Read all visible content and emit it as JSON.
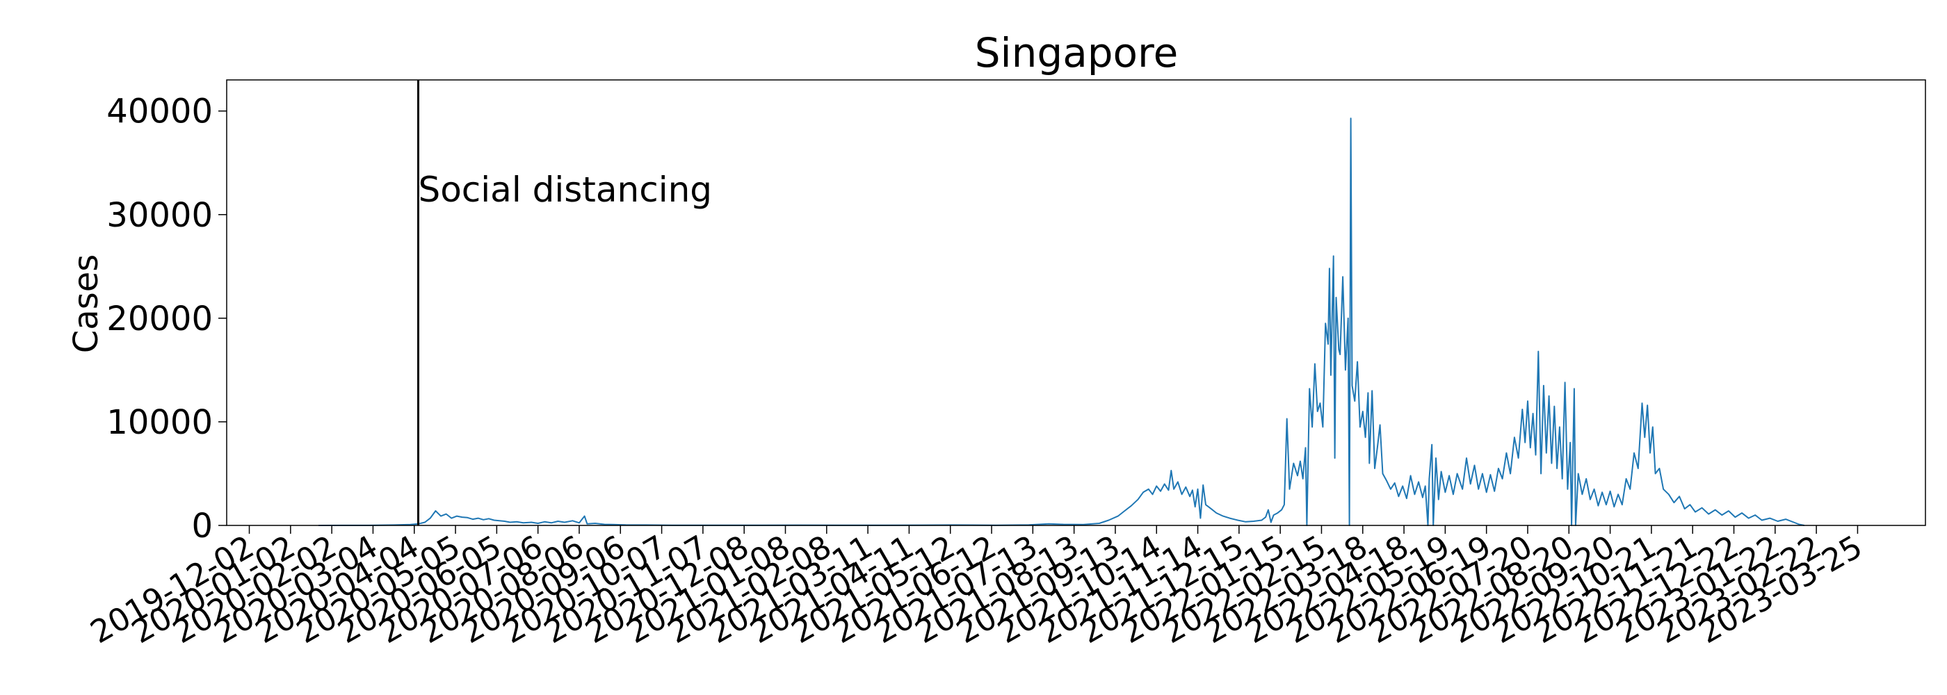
{
  "chart_data": {
    "type": "line",
    "title": "Singapore",
    "xlabel": "",
    "ylabel": "Cases",
    "ylim": [
      0,
      43000
    ],
    "xlim": [
      "2019-11-15",
      "2023-05-15"
    ],
    "y_ticks": [
      0,
      10000,
      20000,
      30000,
      40000
    ],
    "x_ticks": [
      "2019-12-02",
      "2020-01-02",
      "2020-02-02",
      "2020-03-04",
      "2020-04-04",
      "2020-05-05",
      "2020-06-05",
      "2020-07-06",
      "2020-08-06",
      "2020-09-06",
      "2020-10-07",
      "2020-11-07",
      "2020-12-08",
      "2021-01-08",
      "2021-02-08",
      "2021-03-11",
      "2021-04-11",
      "2021-05-12",
      "2021-06-12",
      "2021-07-13",
      "2021-08-13",
      "2021-09-13",
      "2021-10-14",
      "2021-11-14",
      "2021-12-15",
      "2022-01-15",
      "2022-02-15",
      "2022-03-18",
      "2022-04-18",
      "2022-05-19",
      "2022-06-19",
      "2022-07-20",
      "2022-08-20",
      "2022-09-20",
      "2022-10-21",
      "2022-11-21",
      "2022-12-22",
      "2023-01-22",
      "2023-02-22",
      "2023-03-25"
    ],
    "grid": false,
    "line_color": "#1f77b4",
    "annotation": {
      "text": "Social distancing",
      "date": "2020-04-07"
    },
    "series": [
      {
        "points": [
          [
            "2020-01-23",
            1
          ],
          [
            "2020-02-10",
            5
          ],
          [
            "2020-03-01",
            10
          ],
          [
            "2020-03-20",
            40
          ],
          [
            "2020-04-01",
            80
          ],
          [
            "2020-04-07",
            150
          ],
          [
            "2020-04-12",
            300
          ],
          [
            "2020-04-16",
            700
          ],
          [
            "2020-04-20",
            1400
          ],
          [
            "2020-04-24",
            900
          ],
          [
            "2020-04-28",
            1100
          ],
          [
            "2020-05-02",
            700
          ],
          [
            "2020-05-06",
            900
          ],
          [
            "2020-05-10",
            800
          ],
          [
            "2020-05-14",
            750
          ],
          [
            "2020-05-18",
            600
          ],
          [
            "2020-05-22",
            700
          ],
          [
            "2020-05-26",
            550
          ],
          [
            "2020-05-30",
            650
          ],
          [
            "2020-06-03",
            500
          ],
          [
            "2020-06-07",
            450
          ],
          [
            "2020-06-11",
            400
          ],
          [
            "2020-06-15",
            300
          ],
          [
            "2020-06-20",
            350
          ],
          [
            "2020-06-25",
            250
          ],
          [
            "2020-07-01",
            300
          ],
          [
            "2020-07-06",
            200
          ],
          [
            "2020-07-11",
            350
          ],
          [
            "2020-07-16",
            250
          ],
          [
            "2020-07-21",
            400
          ],
          [
            "2020-07-26",
            300
          ],
          [
            "2020-08-01",
            450
          ],
          [
            "2020-08-06",
            250
          ],
          [
            "2020-08-10",
            900
          ],
          [
            "2020-08-12",
            150
          ],
          [
            "2020-08-18",
            200
          ],
          [
            "2020-08-25",
            100
          ],
          [
            "2020-09-01",
            80
          ],
          [
            "2020-09-10",
            50
          ],
          [
            "2020-09-25",
            40
          ],
          [
            "2020-10-15",
            20
          ],
          [
            "2020-11-15",
            15
          ],
          [
            "2020-12-20",
            20
          ],
          [
            "2021-01-20",
            30
          ],
          [
            "2021-02-20",
            15
          ],
          [
            "2021-03-20",
            20
          ],
          [
            "2021-04-20",
            25
          ],
          [
            "2021-05-15",
            40
          ],
          [
            "2021-06-15",
            20
          ],
          [
            "2021-07-10",
            50
          ],
          [
            "2021-07-25",
            150
          ],
          [
            "2021-08-05",
            100
          ],
          [
            "2021-08-20",
            80
          ],
          [
            "2021-09-01",
            200
          ],
          [
            "2021-09-08",
            500
          ],
          [
            "2021-09-15",
            900
          ],
          [
            "2021-09-20",
            1400
          ],
          [
            "2021-09-25",
            1900
          ],
          [
            "2021-09-30",
            2500
          ],
          [
            "2021-10-04",
            3200
          ],
          [
            "2021-10-08",
            3500
          ],
          [
            "2021-10-11",
            3000
          ],
          [
            "2021-10-14",
            3800
          ],
          [
            "2021-10-17",
            3300
          ],
          [
            "2021-10-20",
            4000
          ],
          [
            "2021-10-23",
            3400
          ],
          [
            "2021-10-25",
            5300
          ],
          [
            "2021-10-27",
            3500
          ],
          [
            "2021-10-30",
            4200
          ],
          [
            "2021-11-02",
            3000
          ],
          [
            "2021-11-05",
            3700
          ],
          [
            "2021-11-08",
            2800
          ],
          [
            "2021-11-10",
            3400
          ],
          [
            "2021-11-12",
            1800
          ],
          [
            "2021-11-14",
            3500
          ],
          [
            "2021-11-16",
            700
          ],
          [
            "2021-11-18",
            3900
          ],
          [
            "2021-11-20",
            2000
          ],
          [
            "2021-11-24",
            1600
          ],
          [
            "2021-11-28",
            1200
          ],
          [
            "2021-12-03",
            900
          ],
          [
            "2021-12-08",
            700
          ],
          [
            "2021-12-14",
            500
          ],
          [
            "2021-12-20",
            350
          ],
          [
            "2021-12-26",
            400
          ],
          [
            "2022-01-01",
            500
          ],
          [
            "2022-01-04",
            800
          ],
          [
            "2022-01-06",
            1500
          ],
          [
            "2022-01-08",
            300
          ],
          [
            "2022-01-10",
            1000
          ],
          [
            "2022-01-13",
            1200
          ],
          [
            "2022-01-16",
            1500
          ],
          [
            "2022-01-18",
            2000
          ],
          [
            "2022-01-20",
            10300
          ],
          [
            "2022-01-22",
            3500
          ],
          [
            "2022-01-25",
            6000
          ],
          [
            "2022-01-28",
            4800
          ],
          [
            "2022-01-30",
            6200
          ],
          [
            "2022-02-01",
            4500
          ],
          [
            "2022-02-03",
            7500
          ],
          [
            "2022-02-04",
            0
          ],
          [
            "2022-02-06",
            13200
          ],
          [
            "2022-02-08",
            9500
          ],
          [
            "2022-02-10",
            15600
          ],
          [
            "2022-02-12",
            11000
          ],
          [
            "2022-02-14",
            11800
          ],
          [
            "2022-02-16",
            9500
          ],
          [
            "2022-02-18",
            19500
          ],
          [
            "2022-02-20",
            17500
          ],
          [
            "2022-02-21",
            24800
          ],
          [
            "2022-02-22",
            14500
          ],
          [
            "2022-02-24",
            26000
          ],
          [
            "2022-02-25",
            6500
          ],
          [
            "2022-02-26",
            22000
          ],
          [
            "2022-02-28",
            17000
          ],
          [
            "2022-03-01",
            16500
          ],
          [
            "2022-03-03",
            24000
          ],
          [
            "2022-03-05",
            15000
          ],
          [
            "2022-03-07",
            20000
          ],
          [
            "2022-03-08",
            0
          ],
          [
            "2022-03-09",
            39300
          ],
          [
            "2022-03-10",
            13500
          ],
          [
            "2022-03-12",
            12000
          ],
          [
            "2022-03-14",
            15800
          ],
          [
            "2022-03-16",
            9500
          ],
          [
            "2022-03-18",
            11000
          ],
          [
            "2022-03-20",
            8500
          ],
          [
            "2022-03-22",
            12800
          ],
          [
            "2022-03-23",
            6000
          ],
          [
            "2022-03-25",
            13000
          ],
          [
            "2022-03-27",
            5500
          ],
          [
            "2022-03-29",
            7500
          ],
          [
            "2022-03-31",
            9700
          ],
          [
            "2022-04-02",
            5000
          ],
          [
            "2022-04-05",
            4300
          ],
          [
            "2022-04-08",
            3500
          ],
          [
            "2022-04-11",
            4100
          ],
          [
            "2022-04-14",
            2800
          ],
          [
            "2022-04-17",
            3800
          ],
          [
            "2022-04-20",
            2600
          ],
          [
            "2022-04-23",
            4800
          ],
          [
            "2022-04-26",
            3000
          ],
          [
            "2022-04-29",
            4200
          ],
          [
            "2022-05-02",
            2700
          ],
          [
            "2022-05-04",
            3800
          ],
          [
            "2022-05-06",
            0
          ],
          [
            "2022-05-07",
            4500
          ],
          [
            "2022-05-09",
            7800
          ],
          [
            "2022-05-10",
            0
          ],
          [
            "2022-05-12",
            6500
          ],
          [
            "2022-05-14",
            2500
          ],
          [
            "2022-05-16",
            5200
          ],
          [
            "2022-05-19",
            3200
          ],
          [
            "2022-05-22",
            4800
          ],
          [
            "2022-05-25",
            3000
          ],
          [
            "2022-05-28",
            5000
          ],
          [
            "2022-06-01",
            3500
          ],
          [
            "2022-06-04",
            6500
          ],
          [
            "2022-06-07",
            4000
          ],
          [
            "2022-06-10",
            5800
          ],
          [
            "2022-06-13",
            3500
          ],
          [
            "2022-06-16",
            5000
          ],
          [
            "2022-06-19",
            3200
          ],
          [
            "2022-06-22",
            4900
          ],
          [
            "2022-06-25",
            3300
          ],
          [
            "2022-06-28",
            5500
          ],
          [
            "2022-07-01",
            4500
          ],
          [
            "2022-07-04",
            7000
          ],
          [
            "2022-07-07",
            5000
          ],
          [
            "2022-07-10",
            8500
          ],
          [
            "2022-07-13",
            6500
          ],
          [
            "2022-07-16",
            11200
          ],
          [
            "2022-07-18",
            8000
          ],
          [
            "2022-07-20",
            12000
          ],
          [
            "2022-07-22",
            7500
          ],
          [
            "2022-07-24",
            10800
          ],
          [
            "2022-07-26",
            6800
          ],
          [
            "2022-07-28",
            16800
          ],
          [
            "2022-07-30",
            5000
          ],
          [
            "2022-08-01",
            13500
          ],
          [
            "2022-08-03",
            7000
          ],
          [
            "2022-08-05",
            12500
          ],
          [
            "2022-08-07",
            6000
          ],
          [
            "2022-08-09",
            11500
          ],
          [
            "2022-08-11",
            5500
          ],
          [
            "2022-08-13",
            9500
          ],
          [
            "2022-08-15",
            4500
          ],
          [
            "2022-08-17",
            13800
          ],
          [
            "2022-08-19",
            3500
          ],
          [
            "2022-08-21",
            8000
          ],
          [
            "2022-08-22",
            0
          ],
          [
            "2022-08-24",
            13200
          ],
          [
            "2022-08-25",
            0
          ],
          [
            "2022-08-27",
            5000
          ],
          [
            "2022-08-30",
            3000
          ],
          [
            "2022-09-02",
            4500
          ],
          [
            "2022-09-05",
            2500
          ],
          [
            "2022-09-08",
            3500
          ],
          [
            "2022-09-11",
            1900
          ],
          [
            "2022-09-14",
            3200
          ],
          [
            "2022-09-17",
            2000
          ],
          [
            "2022-09-20",
            3300
          ],
          [
            "2022-09-23",
            1800
          ],
          [
            "2022-09-26",
            3000
          ],
          [
            "2022-09-29",
            2000
          ],
          [
            "2022-10-02",
            4500
          ],
          [
            "2022-10-05",
            3500
          ],
          [
            "2022-10-08",
            7000
          ],
          [
            "2022-10-11",
            5500
          ],
          [
            "2022-10-14",
            11800
          ],
          [
            "2022-10-16",
            8500
          ],
          [
            "2022-10-18",
            11600
          ],
          [
            "2022-10-20",
            7000
          ],
          [
            "2022-10-22",
            9500
          ],
          [
            "2022-10-24",
            5000
          ],
          [
            "2022-10-27",
            5500
          ],
          [
            "2022-10-30",
            3500
          ],
          [
            "2022-11-03",
            3000
          ],
          [
            "2022-11-07",
            2200
          ],
          [
            "2022-11-11",
            2800
          ],
          [
            "2022-11-15",
            1600
          ],
          [
            "2022-11-19",
            2000
          ],
          [
            "2022-11-23",
            1300
          ],
          [
            "2022-11-28",
            1700
          ],
          [
            "2022-12-03",
            1100
          ],
          [
            "2022-12-08",
            1500
          ],
          [
            "2022-12-13",
            1000
          ],
          [
            "2022-12-18",
            1400
          ],
          [
            "2022-12-23",
            800
          ],
          [
            "2022-12-28",
            1200
          ],
          [
            "2023-01-02",
            700
          ],
          [
            "2023-01-07",
            1000
          ],
          [
            "2023-01-12",
            500
          ],
          [
            "2023-01-18",
            700
          ],
          [
            "2023-01-24",
            400
          ],
          [
            "2023-01-30",
            600
          ],
          [
            "2023-02-05",
            300
          ],
          [
            "2023-02-09",
            100
          ],
          [
            "2023-02-13",
            0
          ]
        ]
      }
    ]
  }
}
